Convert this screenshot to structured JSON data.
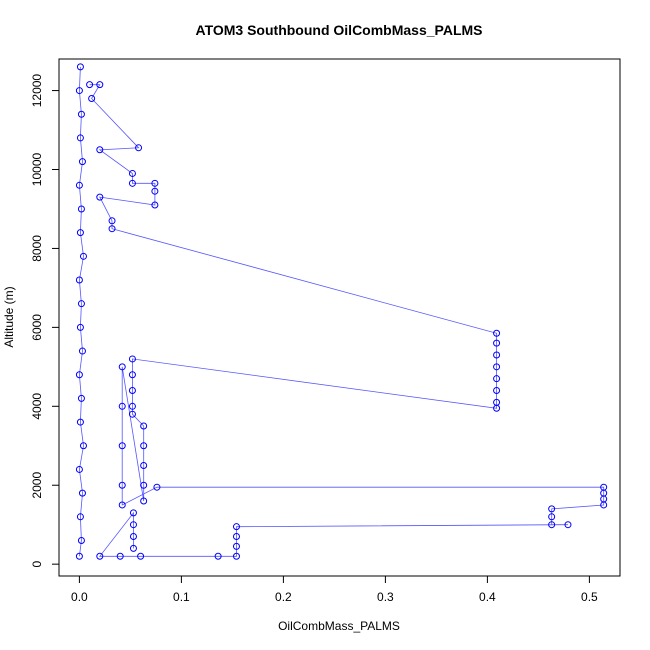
{
  "chart_data": {
    "type": "scatter",
    "title": "ATOM3 Southbound OilCombMass_PALMS",
    "xlabel": "OilCombMass_PALMS",
    "ylabel": "Altitude (m)",
    "xlim": [
      -0.02,
      0.53
    ],
    "ylim": [
      -300,
      12800
    ],
    "x_ticks": [
      0.0,
      0.1,
      0.2,
      0.3,
      0.4,
      0.5
    ],
    "x_tick_labels": [
      "0.0",
      "0.1",
      "0.2",
      "0.3",
      "0.4",
      "0.5"
    ],
    "y_ticks": [
      0,
      2000,
      4000,
      6000,
      8000,
      10000,
      12000
    ],
    "y_tick_labels": [
      "0",
      "2000",
      "4000",
      "6000",
      "8000",
      "10000",
      "12000"
    ],
    "grid": false,
    "marker": "open-circle",
    "connect_points": true,
    "series_color": "#0000ff",
    "line_color": "#5555ff",
    "series": [
      {
        "description": "dense near-zero band",
        "points": [
          [
            0.0,
            200
          ],
          [
            0.002,
            600
          ],
          [
            0.001,
            1200
          ],
          [
            0.003,
            1800
          ],
          [
            0.0,
            2400
          ],
          [
            0.004,
            3000
          ],
          [
            0.001,
            3600
          ],
          [
            0.002,
            4200
          ],
          [
            0.0,
            4800
          ],
          [
            0.003,
            5400
          ],
          [
            0.001,
            6000
          ],
          [
            0.002,
            6600
          ],
          [
            0.0,
            7200
          ],
          [
            0.004,
            7800
          ],
          [
            0.001,
            8400
          ],
          [
            0.002,
            9000
          ],
          [
            0.0,
            9600
          ],
          [
            0.003,
            10200
          ],
          [
            0.001,
            10800
          ],
          [
            0.002,
            11400
          ],
          [
            0.0,
            12000
          ],
          [
            0.001,
            12600
          ]
        ]
      },
      {
        "description": "excursions",
        "points": [
          [
            0.01,
            12150
          ],
          [
            0.02,
            12150
          ],
          [
            0.012,
            11800
          ],
          [
            0.058,
            10550
          ],
          [
            0.02,
            10500
          ],
          [
            0.052,
            9900
          ],
          [
            0.052,
            9650
          ],
          [
            0.074,
            9650
          ],
          [
            0.074,
            9450
          ],
          [
            0.074,
            9100
          ],
          [
            0.02,
            9300
          ],
          [
            0.032,
            8700
          ],
          [
            0.032,
            8500
          ],
          [
            0.409,
            5850
          ],
          [
            0.409,
            5600
          ],
          [
            0.409,
            5300
          ],
          [
            0.409,
            5000
          ],
          [
            0.409,
            4700
          ],
          [
            0.409,
            4400
          ],
          [
            0.409,
            4100
          ],
          [
            0.409,
            3950
          ],
          [
            0.052,
            5200
          ],
          [
            0.052,
            4800
          ],
          [
            0.052,
            4400
          ],
          [
            0.052,
            4000
          ],
          [
            0.052,
            3800
          ],
          [
            0.063,
            3500
          ],
          [
            0.063,
            3000
          ],
          [
            0.063,
            2500
          ],
          [
            0.063,
            2000
          ],
          [
            0.063,
            1600
          ],
          [
            0.042,
            5000
          ],
          [
            0.042,
            4000
          ],
          [
            0.042,
            3000
          ],
          [
            0.042,
            2000
          ],
          [
            0.042,
            1500
          ],
          [
            0.076,
            1950
          ],
          [
            0.514,
            1950
          ],
          [
            0.514,
            1800
          ],
          [
            0.514,
            1650
          ],
          [
            0.514,
            1500
          ],
          [
            0.463,
            1400
          ],
          [
            0.463,
            1200
          ],
          [
            0.463,
            1000
          ],
          [
            0.479,
            1000
          ],
          [
            0.154,
            950
          ],
          [
            0.154,
            700
          ],
          [
            0.154,
            450
          ],
          [
            0.154,
            200
          ],
          [
            0.136,
            200
          ],
          [
            0.06,
            200
          ],
          [
            0.04,
            200
          ],
          [
            0.02,
            200
          ],
          [
            0.053,
            1300
          ],
          [
            0.053,
            1000
          ],
          [
            0.053,
            700
          ],
          [
            0.053,
            400
          ]
        ]
      }
    ]
  }
}
